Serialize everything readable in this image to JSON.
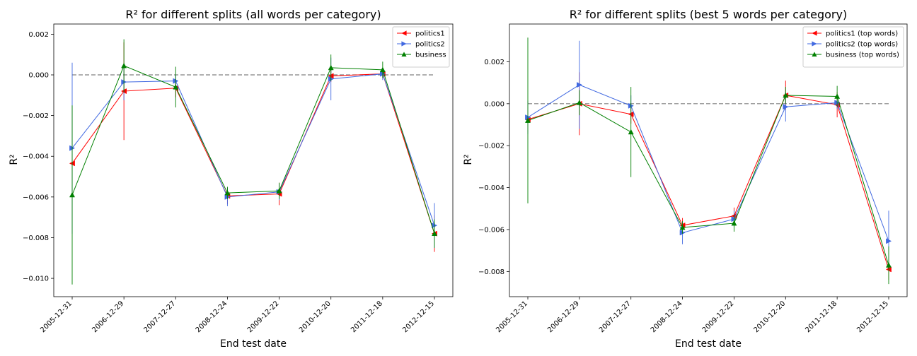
{
  "figure": {
    "charts": [
      {
        "title": "R² for different splits (all words per category)",
        "xlabel": "End test date",
        "ylabel": "R²"
      },
      {
        "title": "R² for different splits (best 5 words per category)",
        "xlabel": "End test date",
        "ylabel": "R²"
      }
    ]
  },
  "chart_data": [
    {
      "type": "line",
      "title": "R² for different splits (all words per category)",
      "xlabel": "End test date",
      "ylabel": "R²",
      "categories": [
        "2005-12-31",
        "2006-12-29",
        "2007-12-27",
        "2008-12-24",
        "2009-12-22",
        "2010-12-20",
        "2011-12-18",
        "2012-12-15"
      ],
      "ylim": [
        -0.0109,
        0.0025
      ],
      "yticks": [
        -0.01,
        -0.008,
        -0.006,
        -0.004,
        -0.002,
        0.0,
        0.002
      ],
      "ytick_labels": [
        "−0.010",
        "−0.008",
        "−0.006",
        "−0.004",
        "−0.002",
        "0.000",
        "0.002"
      ],
      "reference_line": 0.0,
      "grid": false,
      "legend_position": "top-right",
      "series": [
        {
          "name": "politics1",
          "color": "#ff0000",
          "marker": "left-triangle",
          "values": [
            -0.00435,
            -0.0008,
            -0.00065,
            -0.00595,
            -0.00585,
            -5e-05,
            5e-05,
            -0.0078
          ],
          "errors": [
            0.0028,
            0.0024,
            0.00045,
            0.0004,
            0.00055,
            0.0003,
            0.0002,
            0.0009
          ]
        },
        {
          "name": "politics2",
          "color": "#4169e1",
          "marker": "right-triangle",
          "values": [
            -0.0036,
            -0.00035,
            -0.0003,
            -0.006,
            -0.00575,
            -0.0002,
            5e-05,
            -0.0074
          ],
          "errors": [
            0.0042,
            0.0009,
            0.0003,
            0.00045,
            0.0004,
            0.00105,
            0.0003,
            0.0011
          ]
        },
        {
          "name": "business",
          "color": "#008000",
          "marker": "triangle",
          "values": [
            -0.0059,
            0.00045,
            -0.0006,
            -0.0058,
            -0.0057,
            0.00035,
            0.00025,
            -0.0078
          ],
          "errors": [
            0.0044,
            0.0013,
            0.001,
            0.0003,
            0.0004,
            0.00065,
            0.0004,
            0.0007
          ]
        }
      ]
    },
    {
      "type": "line",
      "title": "R² for different splits (best 5 words per category)",
      "xlabel": "End test date",
      "ylabel": "R²",
      "categories": [
        "2005-12-31",
        "2006-12-29",
        "2007-12-27",
        "2008-12-24",
        "2009-12-22",
        "2010-12-20",
        "2011-12-18",
        "2012-12-15"
      ],
      "ylim": [
        -0.0092,
        0.0038
      ],
      "yticks": [
        -0.008,
        -0.006,
        -0.004,
        -0.002,
        0.0,
        0.002
      ],
      "ytick_labels": [
        "−0.008",
        "−0.006",
        "−0.004",
        "−0.002",
        "0.000",
        "0.002"
      ],
      "reference_line": 0.0,
      "grid": false,
      "legend_position": "top-right",
      "series": [
        {
          "name": "politics1 (top words)",
          "color": "#ff0000",
          "marker": "left-triangle",
          "values": [
            -0.00075,
            0.0,
            -0.0005,
            -0.0058,
            -0.00535,
            0.0004,
            -5e-05,
            -0.0079
          ],
          "errors": [
            0.0006,
            0.0015,
            0.00045,
            0.00035,
            0.0004,
            0.0007,
            0.0006,
            0.0005
          ]
        },
        {
          "name": "politics2 (top words)",
          "color": "#4169e1",
          "marker": "right-triangle",
          "values": [
            -0.00065,
            0.0009,
            -0.0001,
            -0.00615,
            -0.0055,
            -0.00015,
            5e-05,
            -0.00655
          ],
          "errors": [
            0.0008,
            0.0021,
            0.0005,
            0.00055,
            0.0004,
            0.0007,
            0.0003,
            0.00145
          ]
        },
        {
          "name": "business (top words)",
          "color": "#008000",
          "marker": "triangle",
          "values": [
            -0.0008,
            5e-05,
            -0.00135,
            -0.0059,
            -0.0057,
            0.0004,
            0.00035,
            -0.0077
          ],
          "errors": [
            0.00395,
            0.0006,
            0.00215,
            0.0003,
            0.0004,
            0.0004,
            0.0005,
            0.0009
          ]
        }
      ]
    }
  ]
}
